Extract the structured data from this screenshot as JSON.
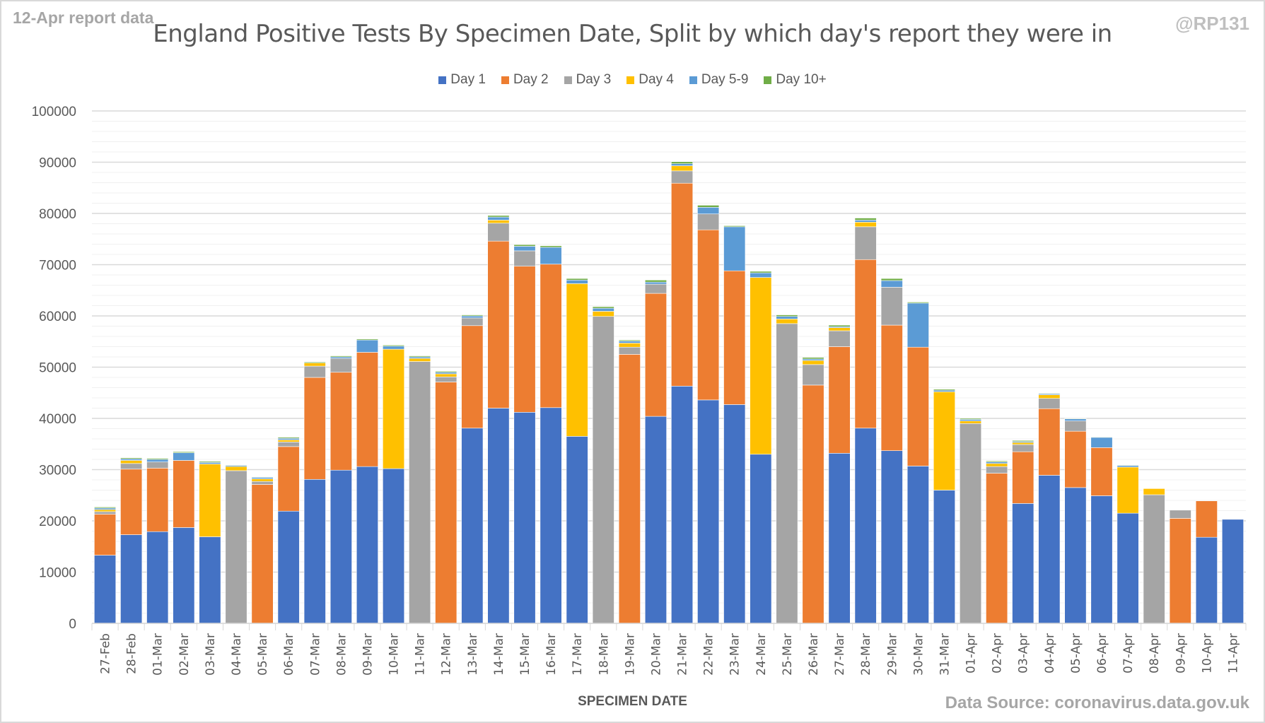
{
  "report_label": "12-Apr report data",
  "handle": "@RP131",
  "source": "Data Source: coronavirus.data.gov.uk",
  "colors": {
    "Day 1": "#4472c4",
    "Day 2": "#ed7d31",
    "Day 3": "#a5a5a5",
    "Day 4": "#ffc000",
    "Day 5-9": "#5b9bd5",
    "Day 10+": "#70ad47"
  },
  "chart_data": {
    "type": "bar",
    "stacked": true,
    "title": "England Positive Tests By Specimen Date, Split by which day's report they were in",
    "xlabel": "SPECIMEN DATE",
    "ylabel": "",
    "ylim": [
      0,
      100000
    ],
    "yticks": [
      0,
      10000,
      20000,
      30000,
      40000,
      50000,
      60000,
      70000,
      80000,
      90000,
      100000
    ],
    "grid": true,
    "legend_position": "top",
    "categories": [
      "27-Feb",
      "28-Feb",
      "01-Mar",
      "02-Mar",
      "03-Mar",
      "04-Mar",
      "05-Mar",
      "06-Mar",
      "07-Mar",
      "08-Mar",
      "09-Mar",
      "10-Mar",
      "11-Mar",
      "12-Mar",
      "13-Mar",
      "14-Mar",
      "15-Mar",
      "16-Mar",
      "17-Mar",
      "18-Mar",
      "19-Mar",
      "20-Mar",
      "21-Mar",
      "22-Mar",
      "23-Mar",
      "24-Mar",
      "25-Mar",
      "26-Mar",
      "27-Mar",
      "28-Mar",
      "29-Mar",
      "30-Mar",
      "31-Mar",
      "01-Apr",
      "02-Apr",
      "03-Apr",
      "04-Apr",
      "05-Apr",
      "06-Apr",
      "07-Apr",
      "08-Apr",
      "09-Apr",
      "10-Apr",
      "11-Apr"
    ],
    "series": [
      {
        "name": "Day 1",
        "values": [
          13300,
          17300,
          17900,
          18700,
          16900,
          0,
          0,
          21900,
          28100,
          29900,
          30600,
          30200,
          0,
          0,
          38100,
          42000,
          41200,
          42100,
          36500,
          0,
          0,
          40400,
          46300,
          43600,
          42700,
          33000,
          0,
          0,
          33200,
          38100,
          33700,
          30700,
          26000,
          0,
          0,
          23400,
          28900,
          26500,
          24900,
          21500,
          0,
          0,
          16800,
          20300
        ]
      },
      {
        "name": "Day 2",
        "values": [
          8000,
          12800,
          12400,
          13100,
          0,
          0,
          27100,
          12600,
          19900,
          19100,
          22300,
          0,
          0,
          47100,
          20000,
          32600,
          28500,
          28000,
          0,
          0,
          52500,
          24000,
          39600,
          33200,
          26100,
          0,
          0,
          46500,
          20800,
          32900,
          24500,
          23200,
          0,
          0,
          29300,
          10100,
          13000,
          11000,
          9400,
          0,
          0,
          20500,
          7100,
          0
        ]
      },
      {
        "name": "Day 3",
        "values": [
          500,
          1100,
          1200,
          0,
          0,
          29800,
          600,
          900,
          2200,
          2700,
          0,
          0,
          51100,
          1000,
          1500,
          3500,
          3000,
          0,
          0,
          59900,
          1400,
          1800,
          2400,
          3100,
          0,
          0,
          58500,
          4000,
          3100,
          6400,
          7400,
          0,
          0,
          39000,
          1300,
          1400,
          2000,
          2000,
          0,
          0,
          25100,
          1600,
          0,
          0
        ]
      },
      {
        "name": "Day 4",
        "values": [
          400,
          600,
          0,
          0,
          14200,
          800,
          500,
          400,
          600,
          0,
          0,
          23300,
          600,
          600,
          0,
          600,
          0,
          0,
          29800,
          1000,
          800,
          0,
          1000,
          0,
          0,
          34500,
          900,
          800,
          600,
          900,
          0,
          0,
          19200,
          500,
          600,
          400,
          700,
          0,
          0,
          9000,
          1200,
          0,
          0,
          0
        ]
      },
      {
        "name": "Day 5-9",
        "values": [
          300,
          300,
          500,
          1500,
          300,
          200,
          300,
          300,
          0,
          300,
          2400,
          600,
          300,
          300,
          400,
          600,
          900,
          3300,
          700,
          600,
          400,
          400,
          400,
          1300,
          8600,
          900,
          500,
          300,
          200,
          400,
          1300,
          8600,
          300,
          300,
          300,
          200,
          200,
          400,
          2000,
          300,
          0,
          0,
          0,
          0
        ]
      },
      {
        "name": "Day 10+",
        "values": [
          200,
          200,
          200,
          200,
          200,
          100,
          100,
          200,
          200,
          200,
          200,
          200,
          200,
          200,
          200,
          300,
          300,
          300,
          300,
          300,
          200,
          400,
          400,
          400,
          200,
          300,
          300,
          300,
          300,
          400,
          400,
          200,
          200,
          200,
          200,
          200,
          100,
          100,
          100,
          100,
          0,
          0,
          0,
          0
        ]
      }
    ]
  }
}
